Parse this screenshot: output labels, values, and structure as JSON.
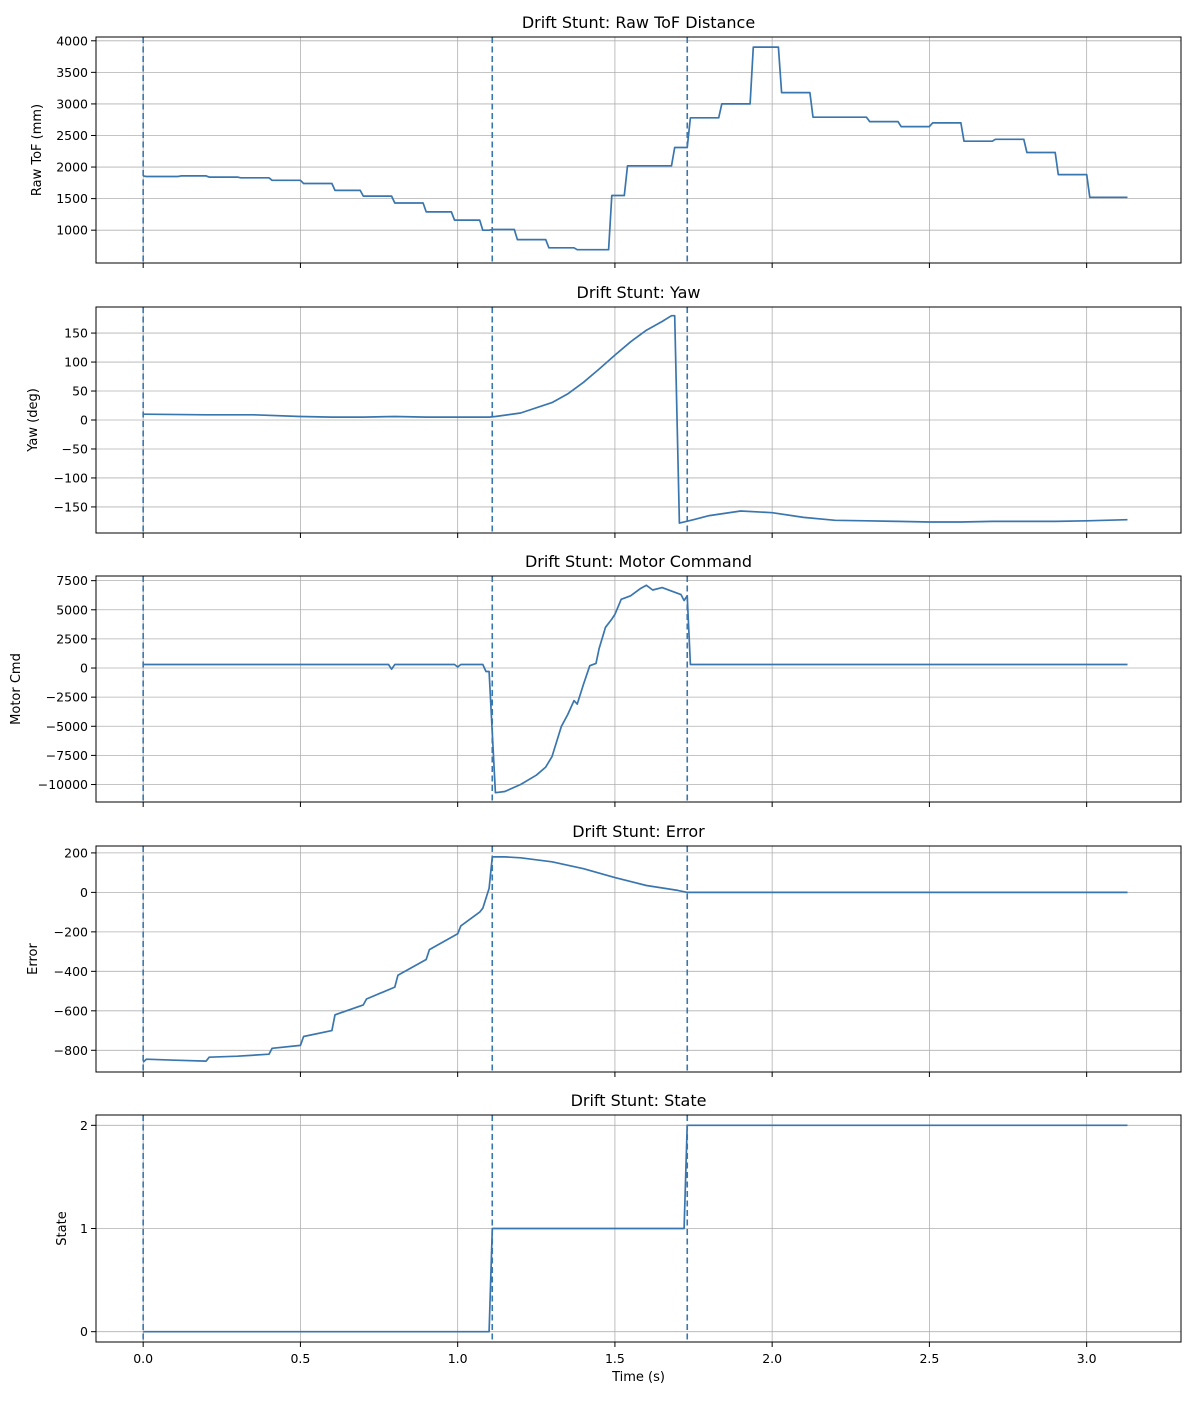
{
  "chart_data": [
    {
      "type": "line",
      "title": "Drift Stunt: Raw ToF Distance",
      "ylabel": "Raw ToF (mm)",
      "xlabel": "",
      "xlim": [
        -0.15,
        3.3
      ],
      "ylim": [
        480,
        4060
      ],
      "xticks": [
        0.0,
        0.5,
        1.0,
        1.5,
        2.0,
        2.5,
        3.0
      ],
      "yticks": [
        1000,
        1500,
        2000,
        2500,
        3000,
        3500,
        4000
      ],
      "ytick_labels": [
        "1000",
        "1500",
        "2000",
        "2500",
        "3000",
        "3500",
        "4000"
      ],
      "grid": true,
      "vlines": [
        0.0,
        1.11,
        1.73
      ],
      "series": [
        {
          "x": [
            0.0,
            0.01,
            0.11,
            0.12,
            0.2,
            0.21,
            0.3,
            0.31,
            0.4,
            0.41,
            0.5,
            0.51,
            0.6,
            0.61,
            0.69,
            0.7,
            0.79,
            0.8,
            0.89,
            0.9,
            0.98,
            0.99,
            1.07,
            1.08,
            1.1,
            1.11,
            1.18,
            1.19,
            1.28,
            1.29,
            1.37,
            1.38,
            1.48,
            1.49,
            1.53,
            1.54,
            1.68,
            1.69,
            1.73,
            1.74,
            1.83,
            1.84,
            1.93,
            1.94,
            2.02,
            2.03,
            2.12,
            2.13,
            2.3,
            2.31,
            2.4,
            2.41,
            2.5,
            2.51,
            2.6,
            2.61,
            2.7,
            2.71,
            2.8,
            2.81,
            2.9,
            2.91,
            3.0,
            3.01,
            3.1,
            3.11,
            3.13
          ],
          "y": [
            1860,
            1850,
            1850,
            1860,
            1860,
            1840,
            1840,
            1830,
            1830,
            1790,
            1790,
            1740,
            1740,
            1630,
            1630,
            1540,
            1540,
            1430,
            1430,
            1290,
            1290,
            1160,
            1160,
            1000,
            1000,
            1010,
            1010,
            850,
            850,
            720,
            720,
            690,
            690,
            1550,
            1550,
            2020,
            2020,
            2310,
            2310,
            2780,
            2780,
            3000,
            3000,
            3900,
            3900,
            3180,
            3180,
            2790,
            2790,
            2720,
            2720,
            2640,
            2640,
            2700,
            2700,
            2410,
            2410,
            2440,
            2440,
            2230,
            2230,
            1880,
            1880,
            1520,
            1520,
            1520,
            1520
          ]
        }
      ]
    },
    {
      "type": "line",
      "title": "Drift Stunt: Yaw",
      "ylabel": "Yaw (deg)",
      "xlabel": "",
      "xlim": [
        -0.15,
        3.3
      ],
      "ylim": [
        -195,
        195
      ],
      "xticks": [
        0.0,
        0.5,
        1.0,
        1.5,
        2.0,
        2.5,
        3.0
      ],
      "yticks": [
        -150,
        -100,
        -50,
        0,
        50,
        100,
        150
      ],
      "ytick_labels": [
        "−150",
        "−100",
        "−50",
        "0",
        "50",
        "100",
        "150"
      ],
      "grid": true,
      "vlines": [
        0.0,
        1.11,
        1.73
      ],
      "series": [
        {
          "x": [
            0.0,
            0.2,
            0.35,
            0.5,
            0.6,
            0.7,
            0.8,
            0.9,
            1.0,
            1.1,
            1.12,
            1.2,
            1.3,
            1.35,
            1.4,
            1.45,
            1.5,
            1.55,
            1.6,
            1.65,
            1.68,
            1.69,
            1.705,
            1.75,
            1.8,
            1.9,
            2.0,
            2.1,
            2.2,
            2.3,
            2.4,
            2.5,
            2.6,
            2.7,
            2.8,
            2.9,
            3.0,
            3.13
          ],
          "y": [
            10,
            9,
            9,
            6,
            5,
            5,
            6,
            5,
            5,
            5,
            6,
            12,
            30,
            45,
            65,
            88,
            112,
            135,
            155,
            170,
            180,
            180,
            -178,
            -172,
            -165,
            -157,
            -160,
            -168,
            -173,
            -174,
            -175,
            -176,
            -176,
            -175,
            -175,
            -175,
            -174,
            -172
          ]
        }
      ]
    },
    {
      "type": "line",
      "title": "Drift Stunt: Motor Command",
      "ylabel": "Motor Cmd",
      "xlabel": "",
      "xlim": [
        -0.15,
        3.3
      ],
      "ylim": [
        -11500,
        7900
      ],
      "xticks": [
        0.0,
        0.5,
        1.0,
        1.5,
        2.0,
        2.5,
        3.0
      ],
      "yticks": [
        -10000,
        -7500,
        -5000,
        -2500,
        0,
        2500,
        5000,
        7500
      ],
      "ytick_labels": [
        "−10000",
        "−7500",
        "−5000",
        "−2500",
        "0",
        "2500",
        "5000",
        "7500"
      ],
      "grid": true,
      "vlines": [
        0.0,
        1.11,
        1.73
      ],
      "series": [
        {
          "x": [
            0.0,
            0.78,
            0.79,
            0.8,
            0.99,
            1.0,
            1.01,
            1.08,
            1.09,
            1.1,
            1.12,
            1.15,
            1.2,
            1.25,
            1.28,
            1.3,
            1.33,
            1.35,
            1.37,
            1.38,
            1.4,
            1.42,
            1.44,
            1.45,
            1.47,
            1.49,
            1.5,
            1.52,
            1.55,
            1.58,
            1.6,
            1.62,
            1.65,
            1.68,
            1.71,
            1.72,
            1.73,
            1.74,
            3.13
          ],
          "y": [
            300,
            300,
            -100,
            300,
            300,
            100,
            300,
            300,
            -300,
            -300,
            -10700,
            -10600,
            -10000,
            -9200,
            -8500,
            -7600,
            -5000,
            -4000,
            -2800,
            -3100,
            -1400,
            200,
            400,
            1700,
            3500,
            4200,
            4600,
            5900,
            6200,
            6800,
            7100,
            6700,
            6900,
            6600,
            6300,
            5800,
            6200,
            300,
            300
          ]
        }
      ]
    },
    {
      "type": "line",
      "title": "Drift Stunt: Error",
      "ylabel": "Error",
      "xlabel": "",
      "xlim": [
        -0.15,
        3.3
      ],
      "ylim": [
        -910,
        235
      ],
      "xticks": [
        0.0,
        0.5,
        1.0,
        1.5,
        2.0,
        2.5,
        3.0
      ],
      "yticks": [
        -800,
        -600,
        -400,
        -200,
        0,
        200
      ],
      "ytick_labels": [
        "−800",
        "−600",
        "−400",
        "−200",
        "0",
        "200"
      ],
      "grid": true,
      "vlines": [
        0.0,
        1.11,
        1.73
      ],
      "series": [
        {
          "x": [
            0.0,
            0.01,
            0.1,
            0.2,
            0.21,
            0.3,
            0.4,
            0.41,
            0.5,
            0.51,
            0.6,
            0.61,
            0.7,
            0.71,
            0.8,
            0.81,
            0.9,
            0.91,
            1.0,
            1.01,
            1.07,
            1.08,
            1.1,
            1.11,
            1.15,
            1.2,
            1.3,
            1.4,
            1.5,
            1.6,
            1.7,
            1.73,
            3.13
          ],
          "y": [
            -860,
            -845,
            -850,
            -855,
            -835,
            -830,
            -820,
            -790,
            -775,
            -730,
            -700,
            -620,
            -570,
            -540,
            -480,
            -420,
            -340,
            -290,
            -210,
            -170,
            -100,
            -80,
            20,
            180,
            180,
            175,
            155,
            120,
            75,
            35,
            10,
            0,
            0
          ]
        }
      ]
    },
    {
      "type": "line",
      "title": "Drift Stunt: State",
      "ylabel": "State",
      "xlabel": "Time (s)",
      "xlim": [
        -0.15,
        3.3
      ],
      "ylim": [
        -0.1,
        2.1
      ],
      "xticks": [
        0.0,
        0.5,
        1.0,
        1.5,
        2.0,
        2.5,
        3.0
      ],
      "xtick_labels": [
        "0.0",
        "0.5",
        "1.0",
        "1.5",
        "2.0",
        "2.5",
        "3.0"
      ],
      "yticks": [
        0,
        1,
        2
      ],
      "ytick_labels": [
        "0",
        "1",
        "2"
      ],
      "grid": true,
      "vlines": [
        0.0,
        1.11,
        1.73
      ],
      "series": [
        {
          "x": [
            0.0,
            1.1,
            1.11,
            1.72,
            1.73,
            3.13
          ],
          "y": [
            0,
            0,
            1,
            1,
            2,
            2
          ]
        }
      ]
    }
  ]
}
